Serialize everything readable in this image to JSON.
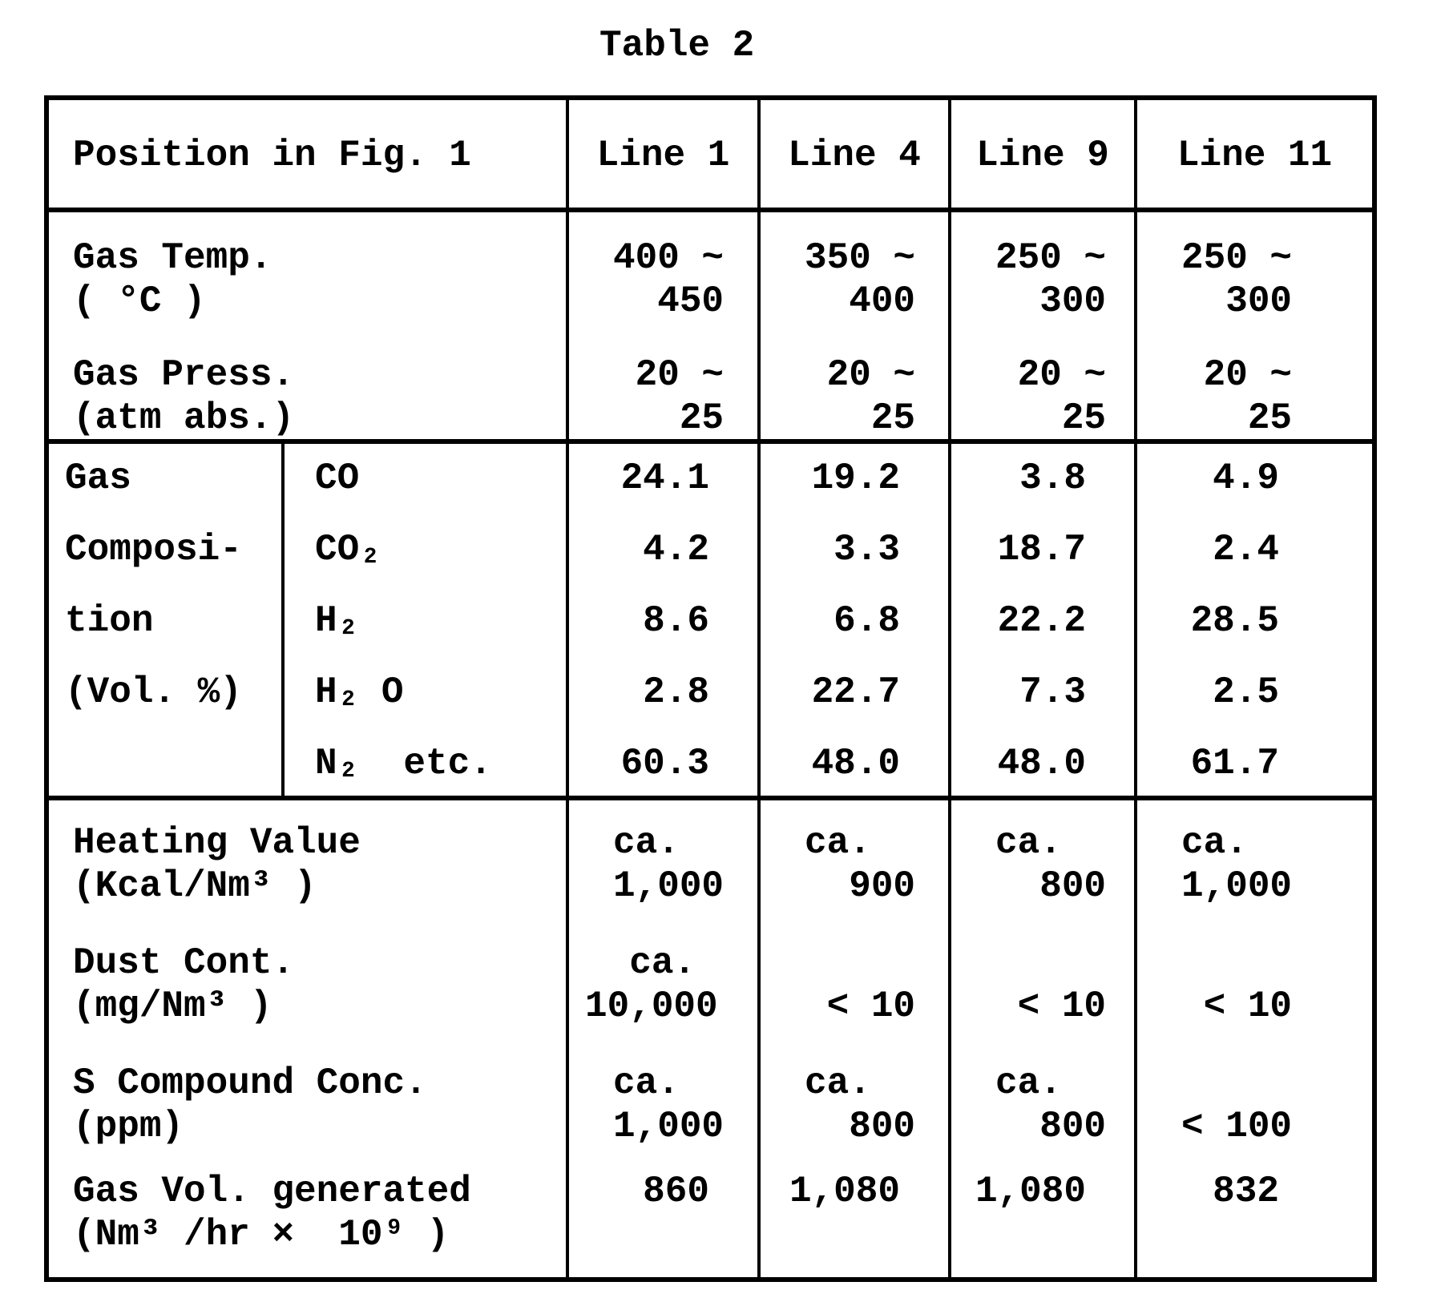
{
  "title": "Table 2",
  "table": {
    "header": {
      "position_label": "Position in Fig. 1",
      "columns": [
        "Line 1",
        "Line 4",
        "Line 9",
        "Line 11"
      ]
    },
    "gas_temp": {
      "label": "Gas Temp.\n( °C )",
      "values": [
        "400 ~\n  450",
        "350 ~\n  400",
        "250 ~\n  300",
        "250 ~\n  300"
      ]
    },
    "gas_press": {
      "label": "Gas Press.\n(atm abs.)",
      "values": [
        " 20 ~\n   25",
        " 20 ~\n   25",
        " 20 ~\n   25",
        " 20 ~\n   25"
      ]
    },
    "composition": {
      "group_label": [
        "Gas",
        "Composi-",
        "tion",
        "(Vol. %)",
        ""
      ],
      "species": [
        {
          "name": "CO",
          "values": [
            "24.1",
            "19.2",
            "3.8",
            "4.9"
          ]
        },
        {
          "name": "CO₂",
          "values": [
            "4.2",
            "3.3",
            "18.7",
            "2.4"
          ]
        },
        {
          "name": "H₂",
          "values": [
            "8.6",
            "6.8",
            "22.2",
            "28.5"
          ]
        },
        {
          "name": "H₂ O",
          "values": [
            "2.8",
            "22.7",
            "7.3",
            "2.5"
          ]
        },
        {
          "name": "N₂  etc.",
          "values": [
            "60.3",
            "48.0",
            "48.0",
            "61.7"
          ]
        }
      ]
    },
    "heating_value": {
      "label": "Heating Value\n(Kcal/Nm³ )",
      "values": [
        "ca.\n1,000",
        "ca.\n  900",
        "ca.\n  800",
        "ca.\n1,000"
      ]
    },
    "dust_content": {
      "label": "Dust Cont.\n(mg/Nm³ )",
      "values": [
        "  ca.\n10,000",
        "\n < 10",
        "\n < 10",
        "\n < 10"
      ]
    },
    "s_compound": {
      "label": "S Compound Conc.\n(ppm)",
      "values": [
        "ca.\n1,000",
        "ca.\n  800",
        "ca.\n  800",
        "\n< 100"
      ]
    },
    "gas_volume": {
      "label": "Gas Vol. generated\n(Nm³ /hr ×  10⁹ )",
      "values": [
        "860",
        "1,080",
        "1,080",
        "832"
      ]
    }
  }
}
